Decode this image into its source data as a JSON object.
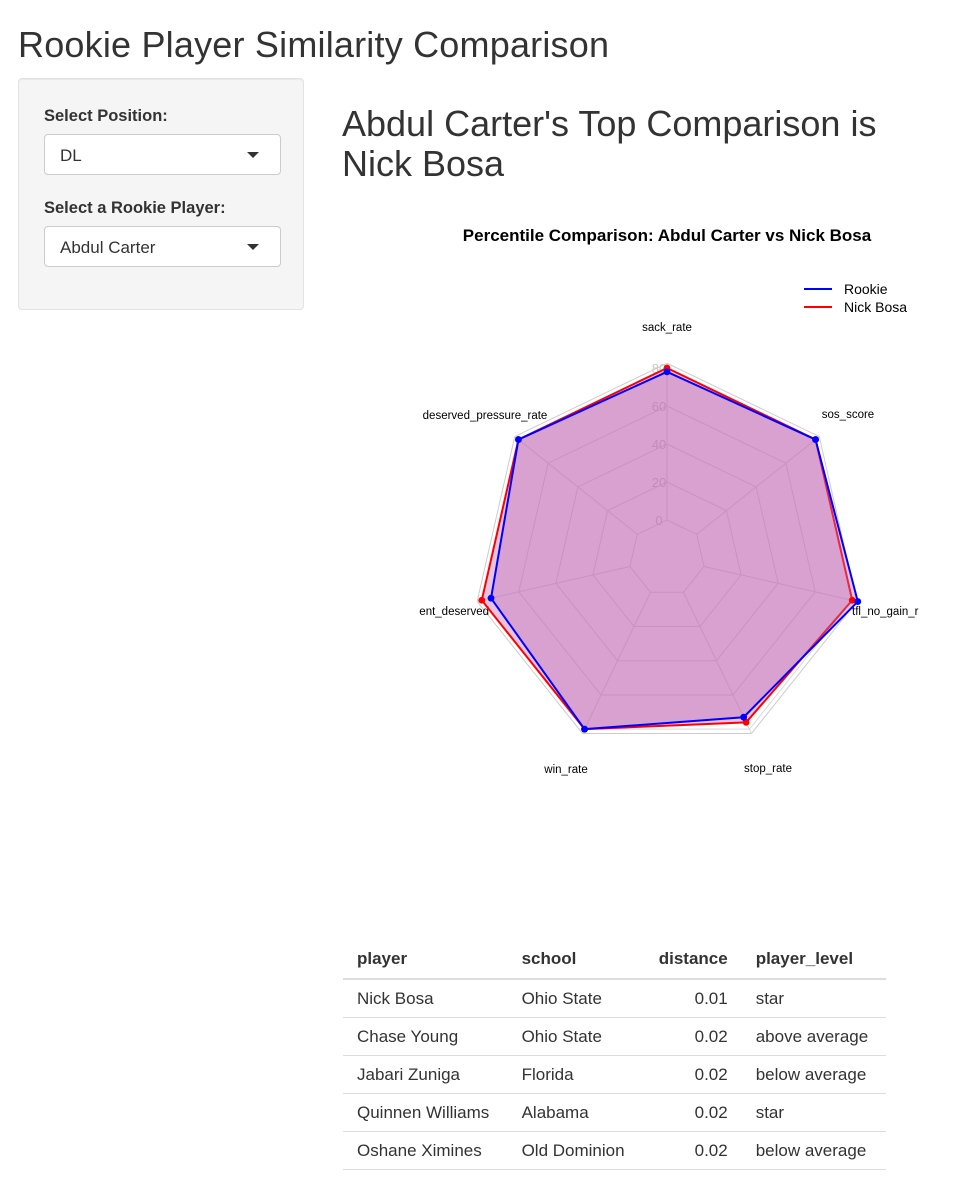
{
  "app": {
    "title": "Rookie Player Similarity Comparison"
  },
  "sidebar": {
    "position_label": "Select Position:",
    "position_value": "DL",
    "player_label": "Select a Rookie Player:",
    "player_value": "Abdul Carter"
  },
  "main": {
    "heading": "Abdul Carter's Top Comparison is Nick Bosa"
  },
  "colors": {
    "rookie": "#0000ff",
    "comparison": "#ff0000",
    "fill": "#c166b3"
  },
  "icons": {
    "dropdown": "caret-down-icon"
  },
  "chart_data": {
    "type": "radar",
    "title": "Percentile Comparison: Abdul Carter vs Nick Bosa",
    "axes": [
      "sack_rate",
      "sos_score",
      "tfl_no_gain_rate",
      "stop_rate",
      "win_rate",
      "improvement_deserved",
      "deserved_pressure_rate"
    ],
    "axis_labels_shown": [
      "sack_rate",
      "sos_score",
      "tfl_no_gain_r",
      "stop_rate",
      "win_rate",
      "ent_deserved",
      "deserved_pressure_rate"
    ],
    "radial_range": [
      -20,
      80
    ],
    "radial_ticks": [
      0,
      20,
      40,
      60,
      80
    ],
    "grid": true,
    "legend_position": "top-right",
    "series": [
      {
        "name": "Rookie",
        "values": [
          78,
          80,
          83,
          73,
          80,
          75,
          80
        ]
      },
      {
        "name": "Nick Bosa",
        "values": [
          80,
          80,
          80,
          76,
          80,
          80,
          80
        ]
      }
    ]
  },
  "table": {
    "headers": [
      "player",
      "school",
      "distance",
      "player_level"
    ],
    "rows": [
      [
        "Nick Bosa",
        "Ohio State",
        "0.01",
        "star"
      ],
      [
        "Chase Young",
        "Ohio State",
        "0.02",
        "above average"
      ],
      [
        "Jabari Zuniga",
        "Florida",
        "0.02",
        "below average"
      ],
      [
        "Quinnen Williams",
        "Alabama",
        "0.02",
        "star"
      ],
      [
        "Oshane Ximines",
        "Old Dominion",
        "0.02",
        "below average"
      ]
    ]
  }
}
